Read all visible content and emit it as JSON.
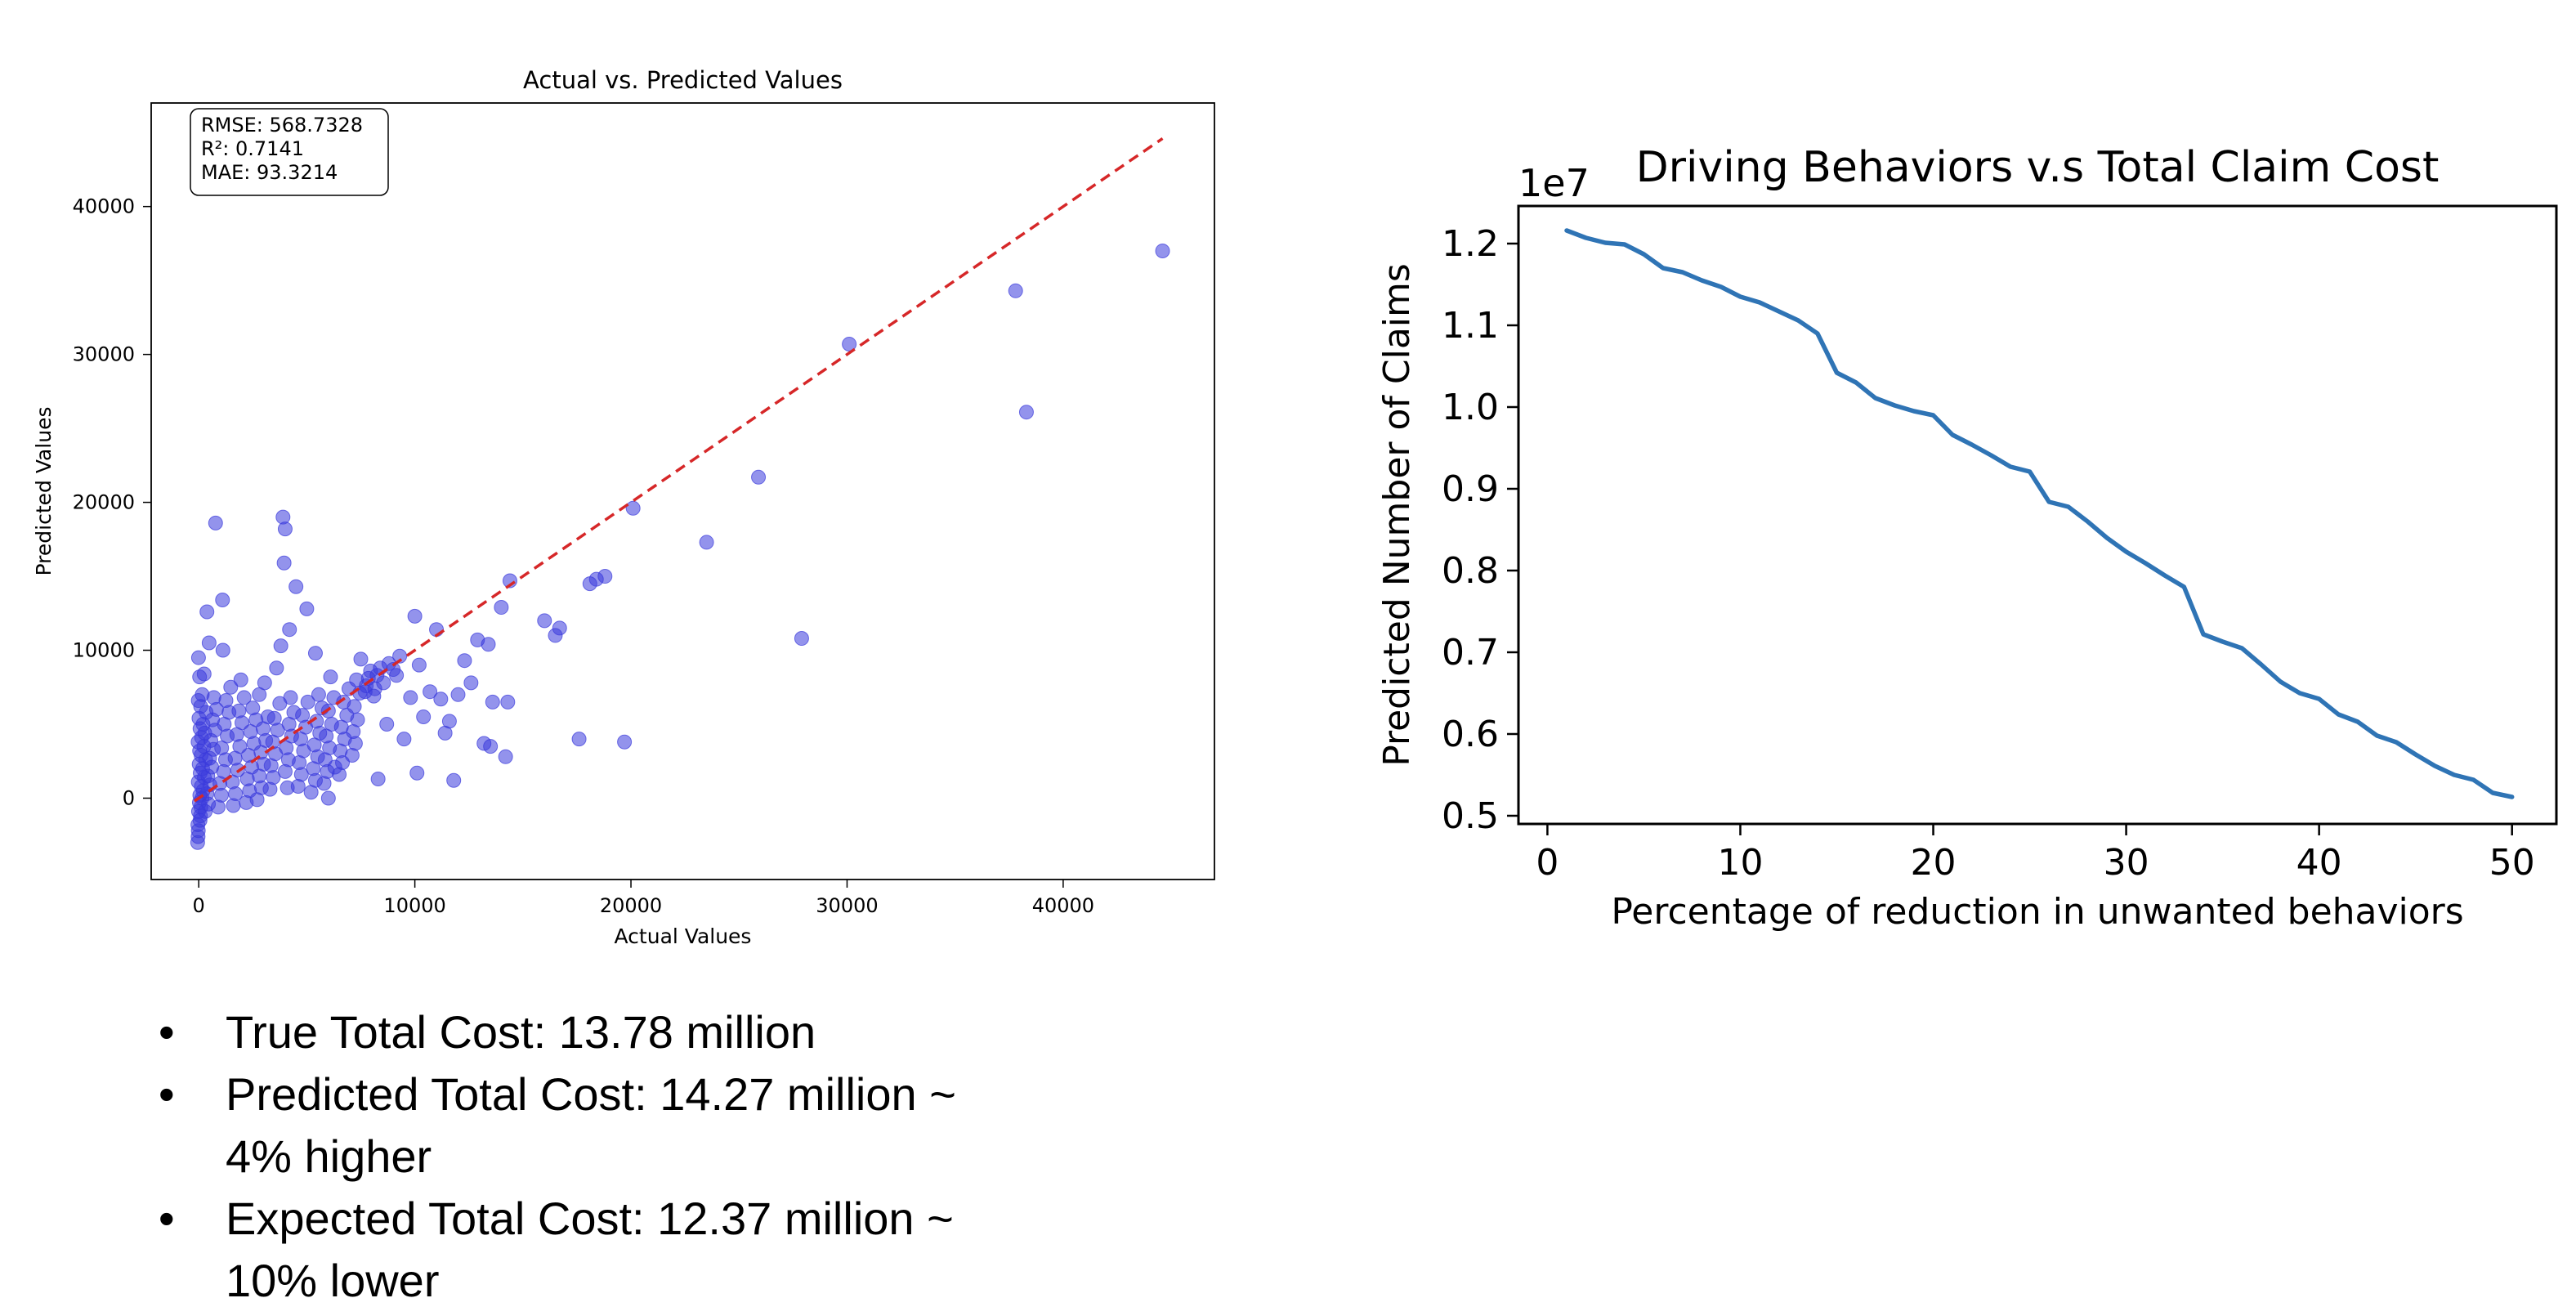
{
  "chart_data": [
    {
      "type": "scatter",
      "title": "Actual vs. Predicted Values",
      "xlabel": "Actual Values",
      "ylabel": "Predicted Values",
      "xlim": [
        -2200,
        47000
      ],
      "ylim": [
        -5500,
        47000
      ],
      "xticks": [
        0,
        10000,
        20000,
        30000,
        40000
      ],
      "yticks": [
        0,
        10000,
        20000,
        30000,
        40000
      ],
      "grid": false,
      "annotation": [
        "RMSE: 568.7328",
        "R²: 0.7141",
        "MAE: 93.3214"
      ],
      "reference_line": {
        "x": [
          -200,
          44600
        ],
        "y": [
          -200,
          44600
        ],
        "color": "#d62728",
        "style": "dashed"
      },
      "point_color": "#3b3bdc",
      "points": [
        [
          -50,
          -3000
        ],
        [
          -30,
          -2600
        ],
        [
          -20,
          -2200
        ],
        [
          -40,
          -1800
        ],
        [
          60,
          -1500
        ],
        [
          80,
          -1200
        ],
        [
          -10,
          -900
        ],
        [
          100,
          -600
        ],
        [
          30,
          -300
        ],
        [
          150,
          0
        ],
        [
          50,
          200
        ],
        [
          200,
          500
        ],
        [
          120,
          800
        ],
        [
          -20,
          1100
        ],
        [
          260,
          1400
        ],
        [
          70,
          1700
        ],
        [
          180,
          2000
        ],
        [
          20,
          2300
        ],
        [
          320,
          2600
        ],
        [
          110,
          2900
        ],
        [
          40,
          3200
        ],
        [
          240,
          3500
        ],
        [
          -30,
          3800
        ],
        [
          130,
          4100
        ],
        [
          280,
          4400
        ],
        [
          60,
          4700
        ],
        [
          200,
          5000
        ],
        [
          10,
          5400
        ],
        [
          340,
          5800
        ],
        [
          90,
          6200
        ],
        [
          -20,
          6600
        ],
        [
          160,
          7000
        ],
        [
          40,
          8200
        ],
        [
          -10,
          9500
        ],
        [
          300,
          -900
        ],
        [
          450,
          -400
        ],
        [
          380,
          300
        ],
        [
          520,
          900
        ],
        [
          420,
          1500
        ],
        [
          600,
          2100
        ],
        [
          500,
          2700
        ],
        [
          680,
          3300
        ],
        [
          560,
          3900
        ],
        [
          750,
          4600
        ],
        [
          640,
          5300
        ],
        [
          820,
          6000
        ],
        [
          700,
          6800
        ],
        [
          250,
          8400
        ],
        [
          480,
          10500
        ],
        [
          380,
          12600
        ],
        [
          780,
          18600
        ],
        [
          1100,
          13400
        ],
        [
          900,
          -600
        ],
        [
          1050,
          200
        ],
        [
          980,
          1000
        ],
        [
          1150,
          1800
        ],
        [
          1240,
          2600
        ],
        [
          1060,
          3400
        ],
        [
          1320,
          4200
        ],
        [
          1180,
          5000
        ],
        [
          1400,
          5800
        ],
        [
          1260,
          6600
        ],
        [
          1480,
          7500
        ],
        [
          1120,
          10000
        ],
        [
          1600,
          -500
        ],
        [
          1700,
          300
        ],
        [
          1560,
          1100
        ],
        [
          1800,
          1900
        ],
        [
          1680,
          2700
        ],
        [
          1900,
          3500
        ],
        [
          1760,
          4300
        ],
        [
          2000,
          5100
        ],
        [
          1860,
          5900
        ],
        [
          2100,
          6800
        ],
        [
          1950,
          8000
        ],
        [
          2200,
          -300
        ],
        [
          2350,
          500
        ],
        [
          2250,
          1300
        ],
        [
          2450,
          2100
        ],
        [
          2300,
          2900
        ],
        [
          2550,
          3700
        ],
        [
          2400,
          4500
        ],
        [
          2650,
          5300
        ],
        [
          2500,
          6100
        ],
        [
          2800,
          7000
        ],
        [
          2700,
          -100
        ],
        [
          2900,
          700
        ],
        [
          2800,
          1500
        ],
        [
          3000,
          2300
        ],
        [
          2880,
          3100
        ],
        [
          3100,
          3900
        ],
        [
          2980,
          4700
        ],
        [
          3200,
          5500
        ],
        [
          3050,
          7800
        ],
        [
          3300,
          600
        ],
        [
          3450,
          1400
        ],
        [
          3350,
          2200
        ],
        [
          3550,
          3000
        ],
        [
          3420,
          3800
        ],
        [
          3650,
          4600
        ],
        [
          3500,
          5400
        ],
        [
          3750,
          6400
        ],
        [
          3600,
          8800
        ],
        [
          3900,
          19000
        ],
        [
          4000,
          18200
        ],
        [
          3950,
          15900
        ],
        [
          4200,
          11400
        ],
        [
          3800,
          10300
        ],
        [
          4000,
          1800
        ],
        [
          4150,
          2600
        ],
        [
          4050,
          3400
        ],
        [
          4300,
          4200
        ],
        [
          4180,
          5000
        ],
        [
          4400,
          5800
        ],
        [
          4250,
          6800
        ],
        [
          4100,
          700
        ],
        [
          4600,
          800
        ],
        [
          4750,
          1600
        ],
        [
          4650,
          2400
        ],
        [
          4850,
          3200
        ],
        [
          4720,
          4000
        ],
        [
          4950,
          4800
        ],
        [
          4800,
          5600
        ],
        [
          5050,
          6500
        ],
        [
          4500,
          14300
        ],
        [
          5000,
          12800
        ],
        [
          5200,
          400
        ],
        [
          5400,
          1200
        ],
        [
          5300,
          2000
        ],
        [
          5500,
          2800
        ],
        [
          5350,
          3600
        ],
        [
          5600,
          4400
        ],
        [
          5450,
          5200
        ],
        [
          5700,
          6100
        ],
        [
          5550,
          7000
        ],
        [
          5400,
          9800
        ],
        [
          5800,
          1000
        ],
        [
          5950,
          1800
        ],
        [
          5850,
          2600
        ],
        [
          6050,
          3400
        ],
        [
          5900,
          4200
        ],
        [
          6150,
          5000
        ],
        [
          6000,
          5900
        ],
        [
          6250,
          6800
        ],
        [
          6100,
          8200
        ],
        [
          6000,
          0
        ],
        [
          6300,
          2100
        ],
        [
          6500,
          1600
        ],
        [
          6650,
          2400
        ],
        [
          6550,
          3200
        ],
        [
          6750,
          4000
        ],
        [
          6600,
          4800
        ],
        [
          6850,
          5600
        ],
        [
          6700,
          6500
        ],
        [
          6950,
          7400
        ],
        [
          7100,
          2900
        ],
        [
          7250,
          3700
        ],
        [
          7150,
          4500
        ],
        [
          7350,
          5300
        ],
        [
          7200,
          6200
        ],
        [
          7450,
          7100
        ],
        [
          7300,
          8000
        ],
        [
          7500,
          9400
        ],
        [
          7700,
          7200
        ],
        [
          7850,
          8100
        ],
        [
          7750,
          7600
        ],
        [
          7950,
          8600
        ],
        [
          8100,
          6900
        ],
        [
          8250,
          8300
        ],
        [
          8150,
          7400
        ],
        [
          8400,
          8800
        ],
        [
          8300,
          1300
        ],
        [
          8550,
          7800
        ],
        [
          8700,
          5000
        ],
        [
          8800,
          9100
        ],
        [
          9000,
          8700
        ],
        [
          9150,
          8300
        ],
        [
          9300,
          9600
        ],
        [
          9500,
          4000
        ],
        [
          9800,
          6800
        ],
        [
          10000,
          12300
        ],
        [
          10200,
          9000
        ],
        [
          10100,
          1700
        ],
        [
          10400,
          5500
        ],
        [
          10700,
          7200
        ],
        [
          11000,
          11400
        ],
        [
          11200,
          6700
        ],
        [
          11400,
          4400
        ],
        [
          11600,
          5200
        ],
        [
          11800,
          1200
        ],
        [
          12000,
          7000
        ],
        [
          12300,
          9300
        ],
        [
          12600,
          7800
        ],
        [
          12900,
          10700
        ],
        [
          13200,
          3700
        ],
        [
          13400,
          10400
        ],
        [
          13500,
          3500
        ],
        [
          13600,
          6500
        ],
        [
          14000,
          12900
        ],
        [
          14200,
          2800
        ],
        [
          14300,
          6500
        ],
        [
          14400,
          14700
        ],
        [
          16000,
          12000
        ],
        [
          16500,
          11000
        ],
        [
          16700,
          11500
        ],
        [
          17600,
          4000
        ],
        [
          18100,
          14500
        ],
        [
          18400,
          14800
        ],
        [
          18800,
          15000
        ],
        [
          19700,
          3800
        ],
        [
          20100,
          19600
        ],
        [
          23500,
          17300
        ],
        [
          25900,
          21700
        ],
        [
          27900,
          10800
        ],
        [
          30100,
          30700
        ],
        [
          37800,
          34300
        ],
        [
          38300,
          26100
        ],
        [
          44600,
          37000
        ]
      ]
    },
    {
      "type": "line",
      "title": "Driving Behaviors v.s Total Claim Cost",
      "xlabel": "Percentage of reduction in unwanted behaviors",
      "ylabel": "Predicted Number of Claims",
      "offset_label": "1e7",
      "xlim": [
        -1.5,
        52.3
      ],
      "ylim": [
        0.49,
        1.246
      ],
      "xticks": [
        0,
        10,
        20,
        30,
        40,
        50
      ],
      "yticks": [
        0.5,
        0.6,
        0.7,
        0.8,
        0.9,
        1.0,
        1.1,
        1.2
      ],
      "ytick_labels": [
        "0.5",
        "0.6",
        "0.7",
        "0.8",
        "0.9",
        "1.0",
        "1.1",
        "1.2"
      ],
      "grid": false,
      "line_color": "#2f74b5",
      "x": [
        1,
        2,
        3,
        4,
        5,
        6,
        7,
        8,
        9,
        10,
        11,
        12,
        13,
        14,
        15,
        16,
        17,
        18,
        19,
        20,
        21,
        22,
        23,
        24,
        25,
        26,
        27,
        28,
        29,
        30,
        31,
        32,
        33,
        34,
        35,
        36,
        37,
        38,
        39,
        40,
        41,
        42,
        43,
        44,
        45,
        46,
        47,
        48,
        49,
        50
      ],
      "y": [
        1.216,
        1.207,
        1.201,
        1.199,
        1.187,
        1.17,
        1.165,
        1.155,
        1.147,
        1.135,
        1.128,
        1.117,
        1.106,
        1.09,
        1.042,
        1.03,
        1.011,
        1.002,
        0.995,
        0.99,
        0.966,
        0.954,
        0.941,
        0.927,
        0.921,
        0.884,
        0.878,
        0.86,
        0.84,
        0.823,
        0.809,
        0.794,
        0.78,
        0.722,
        0.713,
        0.705,
        0.685,
        0.664,
        0.65,
        0.643,
        0.624,
        0.615,
        0.598,
        0.59,
        0.575,
        0.561,
        0.55,
        0.544,
        0.528,
        0.523
      ]
    }
  ],
  "bullets": {
    "marker": "•",
    "items": [
      {
        "lines": [
          "True Total Cost: 13.78 million"
        ]
      },
      {
        "lines": [
          "Predicted Total Cost: 14.27 million ~",
          "4% higher"
        ]
      },
      {
        "lines": [
          "Expected Total Cost: 12.37 million ~",
          "10% lower"
        ]
      }
    ]
  }
}
